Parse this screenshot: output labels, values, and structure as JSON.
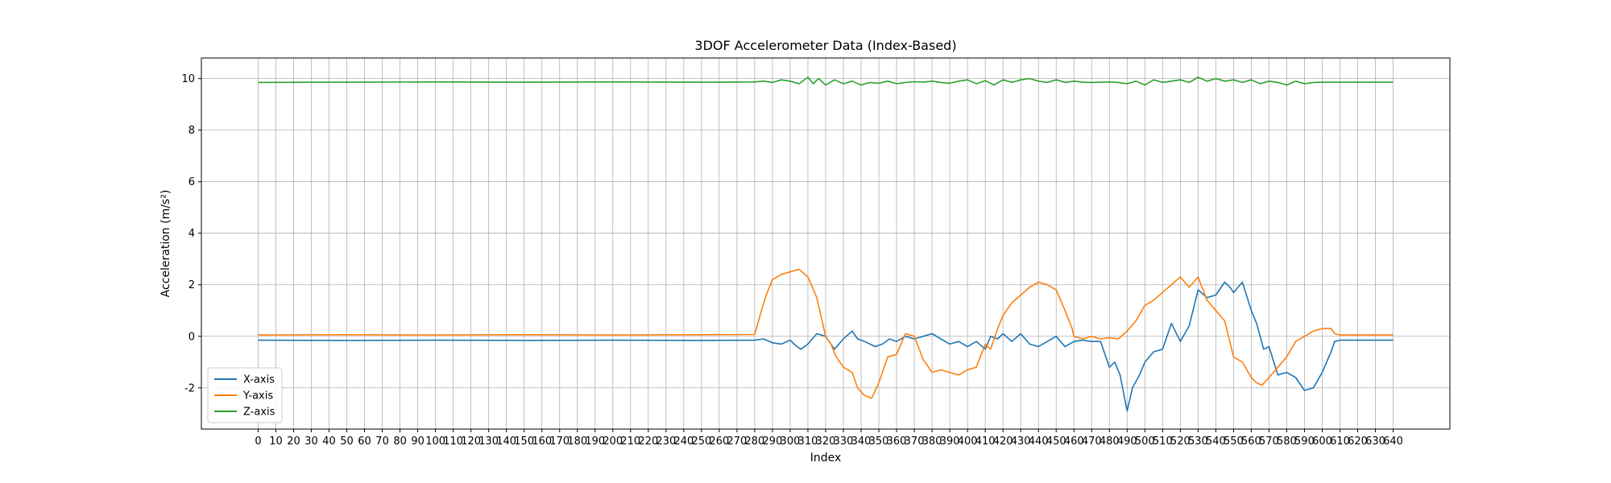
{
  "chart_data": {
    "type": "line",
    "title": "3DOF Accelerometer Data (Index-Based)",
    "xlabel": "Index",
    "ylabel": "Acceleration (m/s²)",
    "xlim": [
      -32,
      672
    ],
    "ylim": [
      -3.6,
      10.8
    ],
    "xticks": [
      0,
      10,
      20,
      30,
      40,
      50,
      60,
      70,
      80,
      90,
      100,
      110,
      120,
      130,
      140,
      150,
      160,
      170,
      180,
      190,
      200,
      210,
      220,
      230,
      240,
      250,
      260,
      270,
      280,
      290,
      300,
      310,
      320,
      330,
      340,
      350,
      360,
      370,
      380,
      390,
      400,
      410,
      420,
      430,
      440,
      450,
      460,
      470,
      480,
      490,
      500,
      510,
      520,
      530,
      540,
      550,
      560,
      570,
      580,
      590,
      600,
      610,
      620,
      630,
      640
    ],
    "yticks": [
      -2,
      0,
      2,
      4,
      6,
      8,
      10
    ],
    "grid": true,
    "legend_position": "lower-left",
    "series": [
      {
        "name": "X-axis",
        "color": "#1f77b4",
        "x": [
          0,
          50,
          100,
          150,
          200,
          250,
          280,
          285,
          290,
          295,
          300,
          303,
          306,
          310,
          315,
          320,
          325,
          330,
          335,
          338,
          342,
          348,
          352,
          356,
          360,
          365,
          370,
          375,
          380,
          385,
          390,
          395,
          400,
          405,
          410,
          413,
          417,
          420,
          425,
          430,
          435,
          440,
          445,
          450,
          455,
          460,
          465,
          470,
          475,
          480,
          483,
          486,
          490,
          493,
          497,
          500,
          505,
          510,
          515,
          520,
          525,
          530,
          535,
          540,
          545,
          548,
          550,
          555,
          560,
          563,
          567,
          570,
          575,
          580,
          585,
          590,
          595,
          600,
          605,
          607,
          610,
          620,
          640
        ],
        "y": [
          -0.15,
          -0.16,
          -0.15,
          -0.16,
          -0.15,
          -0.16,
          -0.15,
          -0.1,
          -0.25,
          -0.3,
          -0.15,
          -0.35,
          -0.5,
          -0.3,
          0.1,
          0.0,
          -0.5,
          -0.1,
          0.2,
          -0.1,
          -0.2,
          -0.4,
          -0.3,
          -0.1,
          -0.2,
          0.0,
          -0.1,
          0.0,
          0.1,
          -0.1,
          -0.3,
          -0.2,
          -0.4,
          -0.2,
          -0.5,
          0.0,
          -0.1,
          0.1,
          -0.2,
          0.1,
          -0.3,
          -0.4,
          -0.2,
          0.0,
          -0.4,
          -0.2,
          -0.15,
          -0.2,
          -0.2,
          -1.2,
          -1.0,
          -1.5,
          -2.9,
          -2.0,
          -1.5,
          -1.0,
          -0.6,
          -0.5,
          0.5,
          -0.2,
          0.4,
          1.8,
          1.5,
          1.6,
          2.1,
          1.9,
          1.7,
          2.1,
          1.0,
          0.5,
          -0.5,
          -0.4,
          -1.5,
          -1.4,
          -1.6,
          -2.1,
          -2.0,
          -1.4,
          -0.6,
          -0.2,
          -0.15,
          -0.15,
          -0.15
        ]
      },
      {
        "name": "Y-axis",
        "color": "#ff7f0e",
        "x": [
          0,
          50,
          100,
          150,
          200,
          250,
          280,
          283,
          286,
          290,
          295,
          300,
          305,
          310,
          315,
          320,
          323,
          326,
          330,
          335,
          338,
          342,
          346,
          350,
          355,
          360,
          365,
          370,
          375,
          380,
          385,
          390,
          395,
          400,
          405,
          410,
          413,
          417,
          420,
          425,
          430,
          435,
          440,
          445,
          450,
          455,
          459,
          460,
          465,
          470,
          475,
          480,
          485,
          490,
          495,
          500,
          505,
          510,
          515,
          520,
          525,
          530,
          535,
          540,
          545,
          550,
          555,
          560,
          563,
          566,
          570,
          575,
          580,
          585,
          590,
          595,
          600,
          605,
          607,
          610,
          640
        ],
        "y": [
          0.05,
          0.06,
          0.05,
          0.06,
          0.05,
          0.06,
          0.07,
          0.8,
          1.5,
          2.2,
          2.4,
          2.5,
          2.6,
          2.3,
          1.5,
          0.0,
          -0.3,
          -0.8,
          -1.2,
          -1.4,
          -2.0,
          -2.3,
          -2.4,
          -1.8,
          -0.8,
          -0.7,
          0.1,
          0.0,
          -0.9,
          -1.4,
          -1.3,
          -1.4,
          -1.5,
          -1.3,
          -1.2,
          -0.3,
          -0.5,
          0.3,
          0.8,
          1.3,
          1.6,
          1.9,
          2.1,
          2.0,
          1.8,
          1.0,
          0.3,
          0.0,
          -0.1,
          0.0,
          -0.1,
          -0.05,
          -0.1,
          0.2,
          0.6,
          1.2,
          1.4,
          1.7,
          2.0,
          2.3,
          1.9,
          2.3,
          1.4,
          1.0,
          0.6,
          -0.8,
          -1.0,
          -1.6,
          -1.8,
          -1.9,
          -1.6,
          -1.2,
          -0.8,
          -0.2,
          0.0,
          0.2,
          0.3,
          0.3,
          0.1,
          0.05,
          0.05
        ]
      },
      {
        "name": "Z-axis",
        "color": "#2ca02c",
        "x": [
          0,
          50,
          100,
          150,
          200,
          250,
          280,
          285,
          290,
          295,
          300,
          305,
          310,
          313,
          316,
          320,
          325,
          330,
          335,
          340,
          345,
          350,
          355,
          360,
          365,
          370,
          375,
          380,
          385,
          390,
          395,
          400,
          405,
          410,
          415,
          420,
          425,
          430,
          435,
          440,
          445,
          450,
          455,
          460,
          465,
          470,
          475,
          480,
          485,
          490,
          495,
          500,
          505,
          510,
          515,
          520,
          525,
          530,
          535,
          540,
          545,
          550,
          555,
          560,
          565,
          570,
          575,
          580,
          585,
          590,
          595,
          600,
          610,
          640
        ],
        "y": [
          9.85,
          9.86,
          9.87,
          9.86,
          9.87,
          9.86,
          9.87,
          9.9,
          9.85,
          9.95,
          9.9,
          9.8,
          10.05,
          9.8,
          10.0,
          9.75,
          9.95,
          9.8,
          9.9,
          9.75,
          9.85,
          9.82,
          9.9,
          9.8,
          9.85,
          9.88,
          9.86,
          9.9,
          9.85,
          9.82,
          9.9,
          9.95,
          9.8,
          9.92,
          9.75,
          9.95,
          9.85,
          9.95,
          10.0,
          9.9,
          9.85,
          9.95,
          9.85,
          9.9,
          9.86,
          9.85,
          9.86,
          9.87,
          9.85,
          9.8,
          9.9,
          9.75,
          9.95,
          9.85,
          9.9,
          9.95,
          9.85,
          10.05,
          9.9,
          10.0,
          9.9,
          9.95,
          9.85,
          9.95,
          9.8,
          9.9,
          9.85,
          9.75,
          9.9,
          9.8,
          9.85,
          9.86,
          9.86,
          9.86
        ]
      }
    ]
  }
}
